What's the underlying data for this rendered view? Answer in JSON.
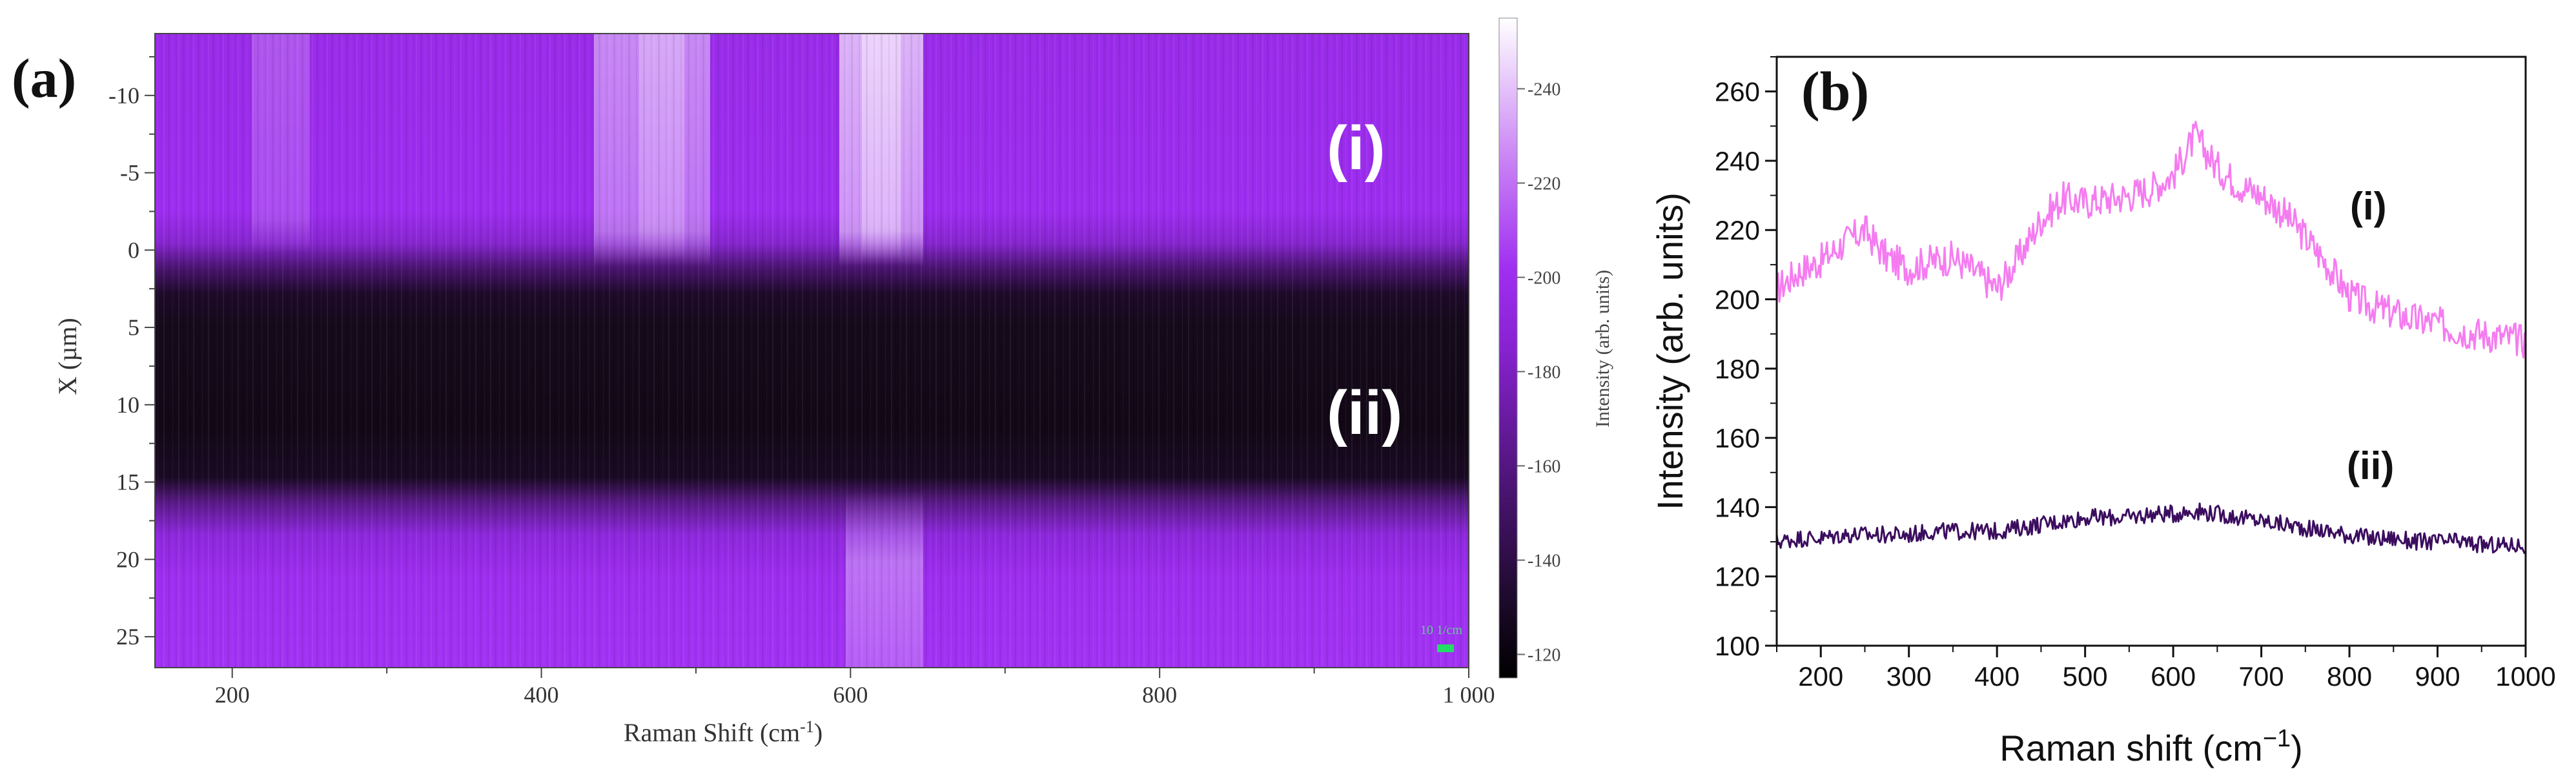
{
  "panel_a": {
    "panel_label": "(a)",
    "xlabel": "Raman Shift (cm",
    "xlabel_sup": "-1",
    "xlabel_end": ")",
    "ylabel": "X (µm)",
    "colorbar_label": "Intensity (arb. units)",
    "region_labels": [
      "(i)",
      "(ii)"
    ],
    "scale_bar_text": "10 1/cm",
    "x_ticks": [
      "200",
      "400",
      "600",
      "800",
      "1 000"
    ],
    "y_ticks": [
      "-10",
      "-5",
      "0",
      "5",
      "10",
      "15",
      "20",
      "25"
    ],
    "colorbar_ticks": [
      "240",
      "220",
      "200",
      "180",
      "160",
      "140",
      "120"
    ],
    "colors": {
      "low": "#120a16",
      "mid": "#4a1470",
      "high": "#9d2cf0",
      "peak": "#f6eefa",
      "scale_bar": "#22dd66"
    }
  },
  "panel_b": {
    "panel_label": "(b)",
    "series_labels": [
      "(i)",
      "(ii)"
    ],
    "colors": {
      "i": "#f57cf0",
      "ii": "#3b0d5e"
    }
  },
  "chart_data": [
    {
      "type": "heatmap",
      "title": "",
      "xlabel": "Raman Shift (cm-1)",
      "ylabel": "X (µm)",
      "xlim": [
        150,
        1000
      ],
      "ylim": [
        -14,
        27
      ],
      "y_axis_inverted": true,
      "colorbar": {
        "label": "Intensity (arb. units)",
        "range": [
          115,
          255
        ],
        "colormap": "black-purple-white"
      },
      "rows": [
        {
          "y_range": [
            -14,
            1
          ],
          "region": "(i)",
          "baseline": 195,
          "peaks": [
            {
              "x": 470,
              "value": 235
            },
            {
              "x": 625,
              "value": 250
            },
            {
              "x": 235,
              "value": 212
            }
          ]
        },
        {
          "y_range": [
            1,
            4
          ],
          "region": "transition"
        },
        {
          "y_range": [
            4,
            16
          ],
          "region": "(ii)",
          "baseline": 128
        },
        {
          "y_range": [
            16,
            18
          ],
          "region": "transition"
        },
        {
          "y_range": [
            18,
            27
          ],
          "region": "lower",
          "baseline": 195,
          "peaks": [
            {
              "x": 625,
              "value": 215
            }
          ]
        }
      ]
    },
    {
      "type": "line",
      "title": "",
      "xlabel": "Raman shift (cm−1)",
      "ylabel": "Intensity (arb. units)",
      "xlim": [
        150,
        1000
      ],
      "ylim": [
        100,
        270
      ],
      "x_ticks": [
        200,
        300,
        400,
        500,
        600,
        700,
        800,
        900,
        1000
      ],
      "y_ticks": [
        100,
        120,
        140,
        160,
        180,
        200,
        220,
        240,
        260
      ],
      "grid": false,
      "x": [
        150,
        175,
        200,
        225,
        250,
        275,
        300,
        325,
        350,
        375,
        400,
        425,
        450,
        475,
        500,
        525,
        550,
        575,
        600,
        625,
        650,
        675,
        700,
        725,
        750,
        775,
        800,
        825,
        850,
        875,
        900,
        925,
        950,
        975,
        1000
      ],
      "series": [
        {
          "name": "(i)",
          "values": [
            203,
            208,
            211,
            216,
            220,
            212,
            209,
            211,
            212,
            208,
            203,
            212,
            223,
            229,
            228,
            229,
            230,
            232,
            236,
            247,
            238,
            233,
            230,
            225,
            218,
            210,
            201,
            198,
            196,
            194,
            193,
            191,
            190,
            189,
            188
          ]
        },
        {
          "name": "(ii)",
          "values": [
            130,
            131,
            131,
            132,
            132,
            132,
            132,
            133,
            133,
            133,
            133,
            134,
            135,
            136,
            137,
            137,
            137,
            138,
            138,
            139,
            138,
            137,
            136,
            135,
            134,
            133,
            132,
            131,
            131,
            130,
            130,
            130,
            129,
            129,
            129
          ]
        }
      ]
    }
  ]
}
